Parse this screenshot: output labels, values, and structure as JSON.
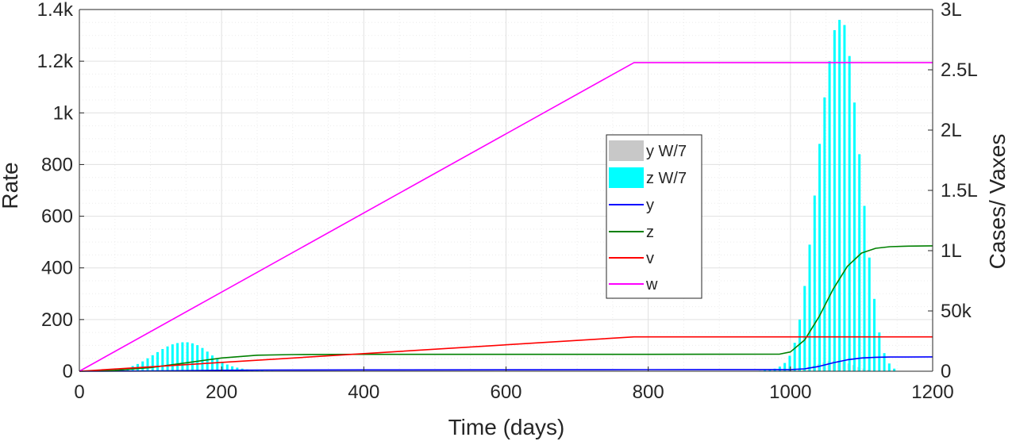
{
  "chart_data": {
    "type": "bar+line",
    "xlabel": "Time (days)",
    "ylabel_left": "Rate",
    "ylabel_right": "Cases/ Vaxes",
    "xlim": [
      0,
      1200
    ],
    "ylim_left": [
      0,
      1400
    ],
    "ylim_right": [
      0,
      300000
    ],
    "grid": true,
    "minor_grid": true,
    "legend_placement": "center-right",
    "x_ticks": [
      0,
      200,
      400,
      600,
      800,
      1000,
      1200
    ],
    "x_tick_labels": [
      "0",
      "200",
      "400",
      "600",
      "800",
      "1000",
      "1200"
    ],
    "y_left_ticks": [
      0,
      200,
      400,
      600,
      800,
      1000,
      1200,
      1400
    ],
    "y_left_tick_labels": [
      "0",
      "200",
      "400",
      "600",
      "800",
      "1k",
      "1.2k",
      "1.4k"
    ],
    "y_right_ticks": [
      0,
      50000,
      100000,
      150000,
      200000,
      250000,
      300000
    ],
    "y_right_tick_labels": [
      "0",
      "50k",
      "1L",
      "1.5L",
      "2L",
      "2.5L",
      "3L"
    ],
    "bar_series": [
      {
        "name": "y W/7",
        "color": "#c8c8c8",
        "axis": "left",
        "bar_days": [
          1012,
          1019,
          1026,
          1033,
          1040,
          1047,
          1054,
          1061,
          1068,
          1075,
          1082,
          1089,
          1096,
          1103,
          1110
        ],
        "values": [
          6,
          10,
          16,
          22,
          28,
          34,
          38,
          40,
          40,
          36,
          30,
          24,
          16,
          10,
          6
        ]
      },
      {
        "name": "z W/7",
        "color": "#00ffff",
        "axis": "left",
        "bar_days": [
          54,
          61,
          68,
          75,
          82,
          89,
          96,
          103,
          110,
          117,
          124,
          131,
          138,
          145,
          152,
          159,
          166,
          173,
          180,
          187,
          194,
          201,
          208,
          215,
          222,
          229,
          236,
          243,
          250,
          257,
          264,
          271,
          278,
          957,
          964,
          971,
          978,
          985,
          992,
          999,
          1006,
          1013,
          1020,
          1027,
          1034,
          1041,
          1048,
          1055,
          1062,
          1069,
          1076,
          1083,
          1090,
          1097,
          1104,
          1111,
          1118,
          1125,
          1132,
          1139,
          1146
        ],
        "values": [
          6,
          9,
          14,
          20,
          28,
          38,
          50,
          62,
          74,
          86,
          96,
          104,
          109,
          112,
          112,
          108,
          101,
          90,
          76,
          61,
          47,
          35,
          26,
          19,
          14,
          10,
          7,
          5,
          4,
          3,
          2,
          2,
          1,
          2,
          4,
          6,
          10,
          18,
          32,
          60,
          110,
          200,
          330,
          490,
          680,
          880,
          1060,
          1200,
          1320,
          1360,
          1340,
          1220,
          1040,
          840,
          640,
          440,
          280,
          150,
          70,
          30,
          10
        ]
      }
    ],
    "line_series": [
      {
        "name": "y",
        "color": "#0000ff",
        "axis": "right",
        "x": [
          0,
          100,
          200,
          260,
          400,
          600,
          800,
          1000,
          1020,
          1040,
          1060,
          1080,
          1100,
          1120,
          1140,
          1200
        ],
        "values": [
          0,
          200,
          800,
          1000,
          1100,
          1200,
          1300,
          1400,
          2000,
          4000,
          7000,
          9500,
          11000,
          11600,
          11800,
          11900
        ]
      },
      {
        "name": "z",
        "color": "#008000",
        "axis": "right",
        "x": [
          0,
          50,
          100,
          150,
          200,
          250,
          300,
          400,
          600,
          800,
          985,
          1000,
          1020,
          1040,
          1060,
          1080,
          1100,
          1120,
          1140,
          1160,
          1200
        ],
        "values": [
          0,
          800,
          3000,
          7000,
          11000,
          13300,
          13800,
          14000,
          14000,
          14000,
          14200,
          16000,
          26000,
          45000,
          68000,
          87000,
          98000,
          102000,
          103300,
          103700,
          104000
        ]
      },
      {
        "name": "v",
        "color": "#ff0000",
        "axis": "right",
        "x": [
          0,
          780,
          1200
        ],
        "values": [
          0,
          28500,
          28500
        ]
      },
      {
        "name": "w",
        "color": "#ff00ff",
        "axis": "right",
        "x": [
          0,
          780,
          1200
        ],
        "values": [
          0,
          256000,
          256000
        ]
      }
    ]
  }
}
